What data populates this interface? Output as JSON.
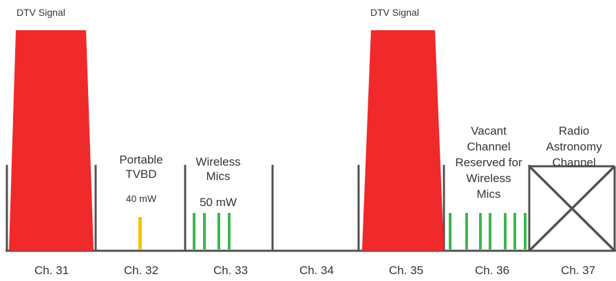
{
  "colors": {
    "dtv_signal": "#f02a2a",
    "tvbd": "#f5c400",
    "wireless_mics": "#39b84a",
    "axis": "#505050",
    "text": "#333333"
  },
  "channels": [
    "Ch. 31",
    "Ch. 32",
    "Ch. 33",
    "Ch. 34",
    "Ch. 35",
    "Ch. 36",
    "Ch. 37"
  ],
  "dtv_signals": [
    {
      "channel": "Ch. 31",
      "label": "DTV Signal"
    },
    {
      "channel": "Ch. 35",
      "label": "DTV Signal"
    }
  ],
  "tvbd": {
    "channel": "Ch. 32",
    "title_line1": "Portable",
    "title_line2": "TVBD",
    "power": "40 mW",
    "bar_count": 1
  },
  "wireless_mics": {
    "channel": "Ch. 33",
    "title_line1": "Wireless",
    "title_line2": "Mics",
    "power": "50 mW",
    "bar_count": 4
  },
  "vacant_channel": {
    "channel": "Ch. 36",
    "line1": "Vacant",
    "line2": "Channel",
    "line3": "Reserved for",
    "line4": "Wireless",
    "line5": "Mics",
    "bar_count": 8
  },
  "radio_astronomy": {
    "channel": "Ch. 37",
    "line1": "Radio",
    "line2": "Astronomy",
    "line3": "Channel"
  }
}
